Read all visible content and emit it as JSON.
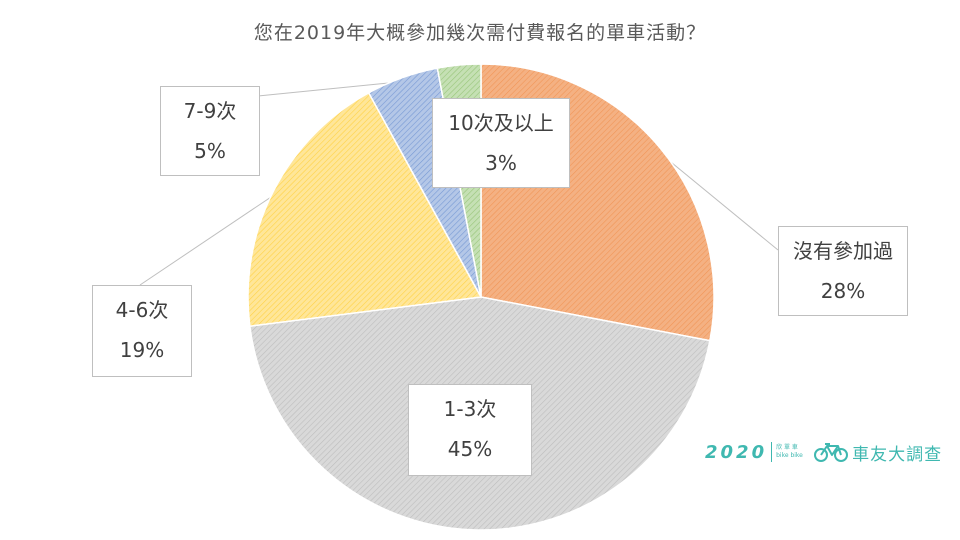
{
  "chart_data": {
    "type": "pie",
    "title": "您在2019年大概參加幾次需付費報名的單車活動？",
    "slices": [
      {
        "label": "沒有參加過",
        "value": 28,
        "display": "28%",
        "color": "#f4b183",
        "stroke": "#ed7d31"
      },
      {
        "label": "1-3次",
        "value": 45,
        "display": "45%",
        "color": "#d9d9d9",
        "stroke": "#a5a5a5"
      },
      {
        "label": "4-6次",
        "value": 19,
        "display": "19%",
        "color": "#ffe699",
        "stroke": "#ffc000"
      },
      {
        "label": "7-9次",
        "value": 5,
        "display": "5%",
        "color": "#b4c7e7",
        "stroke": "#4472c4"
      },
      {
        "label": "10次及以上",
        "value": 3,
        "display": "3%",
        "color": "#c5e0b4",
        "stroke": "#70ad47"
      }
    ],
    "start": "12 o'clock",
    "direction": "clockwise",
    "legend": "none",
    "label_style": "callout boxes"
  },
  "brand": {
    "year": "2020",
    "mini_line1": "欣 單 車",
    "mini_line2": "bike bike",
    "name": "車友大調查",
    "icon": "bicycle-icon",
    "color": "#3fb8b0"
  }
}
